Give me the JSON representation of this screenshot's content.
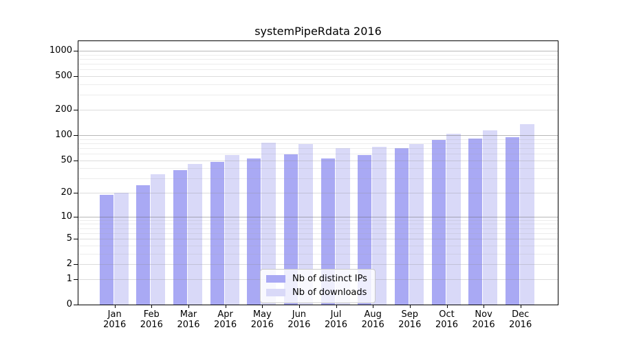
{
  "chart_data": {
    "type": "bar",
    "title": "systemPipeRdata 2016",
    "categories": [
      "Jan",
      "Feb",
      "Mar",
      "Apr",
      "May",
      "Jun",
      "Jul",
      "Aug",
      "Sep",
      "Oct",
      "Nov",
      "Dec"
    ],
    "x_year_label": "2016",
    "series": [
      {
        "name": "Nb of distinct IPs",
        "color": "#a9a9f4",
        "values": [
          19,
          25,
          38,
          48,
          52,
          59,
          52,
          58,
          70,
          87,
          91,
          94
        ]
      },
      {
        "name": "Nb of downloads",
        "color": "#d9d9f8",
        "values": [
          20,
          34,
          45,
          58,
          81,
          78,
          70,
          73,
          78,
          104,
          113,
          135
        ]
      }
    ],
    "yscale": "log1p",
    "ylim": [
      0,
      1280
    ],
    "yticks": [
      0,
      1,
      2,
      5,
      10,
      20,
      50,
      100,
      200,
      500,
      1000
    ],
    "decade_gridlines": [
      10,
      100,
      1000
    ],
    "minor_gridlines": [
      3,
      4,
      6,
      7,
      8,
      9,
      30,
      40,
      60,
      70,
      80,
      90,
      300,
      400,
      600,
      700,
      800,
      900
    ],
    "grid": true,
    "legend_position": "lower center",
    "colors": {
      "background": "#ffffff",
      "axis": "#000000",
      "grid_major": "#b4b4b4",
      "grid_minor": "#e9e9e9",
      "legend_border": "#c9c9c9"
    }
  }
}
